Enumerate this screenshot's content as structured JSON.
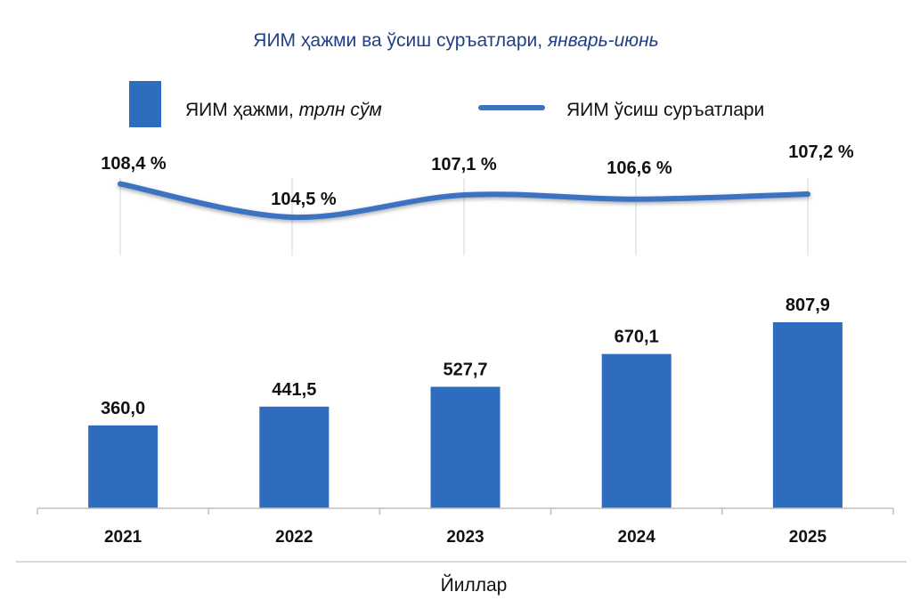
{
  "chart_data": {
    "type": "bar",
    "title": "ЯИМ ҳажми ва ўсиш суръатлари,",
    "title_period": "январь-июнь",
    "xlabel": "Йиллар",
    "categories": [
      "2021",
      "2022",
      "2023",
      "2024",
      "2025"
    ],
    "series": [
      {
        "name": "ЯИМ ҳажми,",
        "name_unit": "трлн сўм",
        "kind": "bar",
        "values": [
          360.0,
          441.5,
          527.7,
          670.1,
          807.9
        ],
        "labels": [
          "360,0",
          "441,5",
          "527,7",
          "670,1",
          "807,9"
        ]
      },
      {
        "name": "ЯИМ ўсиш суръатлари",
        "kind": "line",
        "values": [
          108.4,
          104.5,
          107.1,
          106.6,
          107.2
        ],
        "labels": [
          "108,4 %",
          "104,5 %",
          "107,1 %",
          "106,6 %",
          "107,2 %"
        ]
      }
    ],
    "legend_position": "top",
    "colors": {
      "bar": "#2e6dbd",
      "line": "#3a73c2",
      "title": "#1f3f8a"
    }
  }
}
